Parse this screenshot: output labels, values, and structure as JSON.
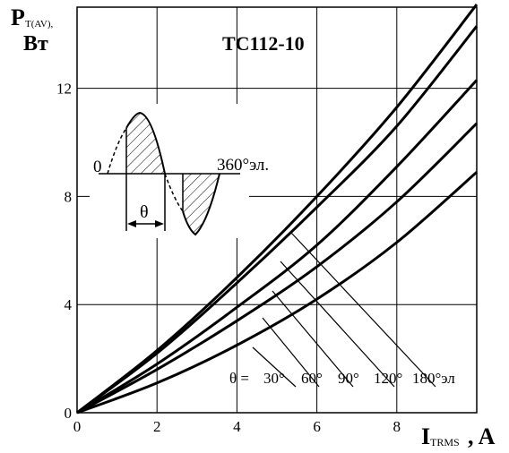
{
  "chart_data": {
    "type": "line",
    "title": "ТС112-10",
    "ylabel_main": "P",
    "ylabel_sub": "T(AV),",
    "ylabel_unit": "Вт",
    "xlabel_main": "I",
    "xlabel_sub": "TRMS",
    "xlabel_unit": ", A",
    "xlim": [
      0,
      10
    ],
    "ylim": [
      0,
      15
    ],
    "grid": true,
    "x_ticks": [
      "0",
      "2",
      "4",
      "6",
      "8"
    ],
    "y_ticks": [
      "0",
      "4",
      "8",
      "12"
    ],
    "series": [
      {
        "name": "180°эл",
        "x": [
          0,
          2,
          4,
          6,
          8,
          10
        ],
        "y": [
          0,
          2.3,
          5.0,
          8.0,
          11.3,
          15.1
        ]
      },
      {
        "name": "120°",
        "x": [
          0,
          2,
          4,
          6,
          8,
          10
        ],
        "y": [
          0,
          2.2,
          4.8,
          7.6,
          10.6,
          14.3
        ]
      },
      {
        "name": "90°",
        "x": [
          0,
          2,
          4,
          6,
          8,
          10
        ],
        "y": [
          0,
          1.8,
          3.9,
          6.2,
          9.1,
          12.3
        ]
      },
      {
        "name": "60°",
        "x": [
          0,
          2,
          4,
          6,
          8,
          10
        ],
        "y": [
          0,
          1.6,
          3.4,
          5.4,
          7.8,
          10.7
        ]
      },
      {
        "name": "30°",
        "x": [
          0,
          2,
          4,
          6,
          8,
          10
        ],
        "y": [
          0,
          1.1,
          2.5,
          4.2,
          6.3,
          8.9
        ]
      }
    ],
    "angle_prefix": "θ =",
    "curve_labels": [
      "30°",
      "60°",
      "90°",
      "120°",
      "180°эл"
    ],
    "inset": {
      "zero_label": "0",
      "end_label": "360°эл.",
      "theta_label": "θ"
    }
  }
}
